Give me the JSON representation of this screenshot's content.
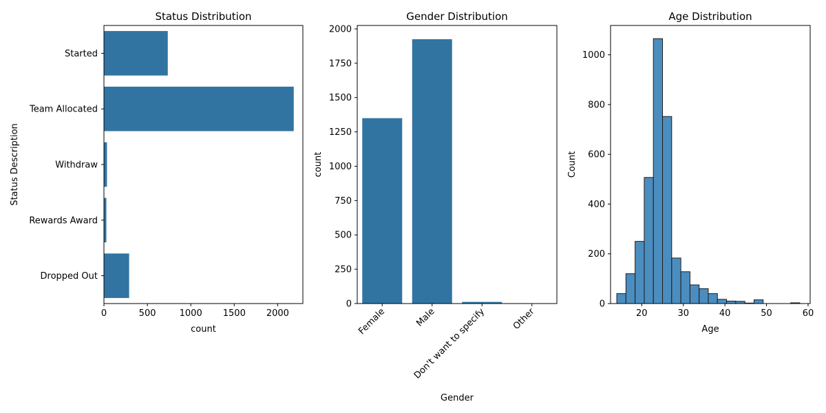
{
  "colors": {
    "bar": "#3274a1",
    "hist": "#4c8dbf",
    "hist_edge": "#1c1c1c"
  },
  "chart_data": [
    {
      "type": "bar",
      "orientation": "horizontal",
      "title": "Status Distribution",
      "xlabel": "count",
      "ylabel": "Status Description",
      "categories": [
        "Started",
        "Team Allocated",
        "Withdraw",
        "Rewards Award",
        "Dropped Out"
      ],
      "values": [
        735,
        2185,
        35,
        28,
        290
      ],
      "xlim": [
        0,
        2290
      ],
      "xticks": [
        0,
        500,
        1000,
        1500,
        2000
      ],
      "xtick_labels": [
        "0",
        "500",
        "1000",
        "1500",
        "2000"
      ],
      "grid": false
    },
    {
      "type": "bar",
      "title": "Gender Distribution",
      "xlabel": "Gender",
      "ylabel": "count",
      "categories": [
        "Female",
        "Male",
        "Don't want to specify",
        "Other"
      ],
      "values": [
        1350,
        1925,
        12,
        2
      ],
      "ylim": [
        0,
        2025
      ],
      "yticks": [
        0,
        250,
        500,
        750,
        1000,
        1250,
        1500,
        1750,
        2000
      ],
      "ytick_labels": [
        "0",
        "250",
        "500",
        "750",
        "1000",
        "1250",
        "1500",
        "1750",
        "2000"
      ],
      "xtick_rotation": 45,
      "grid": false
    },
    {
      "type": "histogram",
      "title": "Age Distribution",
      "xlabel": "Age",
      "ylabel": "Count",
      "bin_edges": [
        14,
        16.2,
        18.4,
        20.6,
        22.8,
        25,
        27.2,
        29.4,
        31.6,
        33.8,
        36,
        38.2,
        40.4,
        42.6,
        44.8,
        47,
        49.2,
        51.4,
        53.6,
        55.8,
        58
      ],
      "counts": [
        40,
        120,
        250,
        507,
        1065,
        752,
        183,
        128,
        75,
        60,
        40,
        17,
        10,
        9,
        2,
        15,
        0,
        0,
        0,
        3
      ],
      "xlim": [
        12.5,
        60.5
      ],
      "ylim": [
        0,
        1118
      ],
      "xticks": [
        20,
        30,
        40,
        50,
        60
      ],
      "xtick_labels": [
        "20",
        "30",
        "40",
        "50",
        "60"
      ],
      "yticks": [
        0,
        200,
        400,
        600,
        800,
        1000
      ],
      "ytick_labels": [
        "0",
        "200",
        "400",
        "600",
        "800",
        "1000"
      ],
      "grid": false
    }
  ]
}
